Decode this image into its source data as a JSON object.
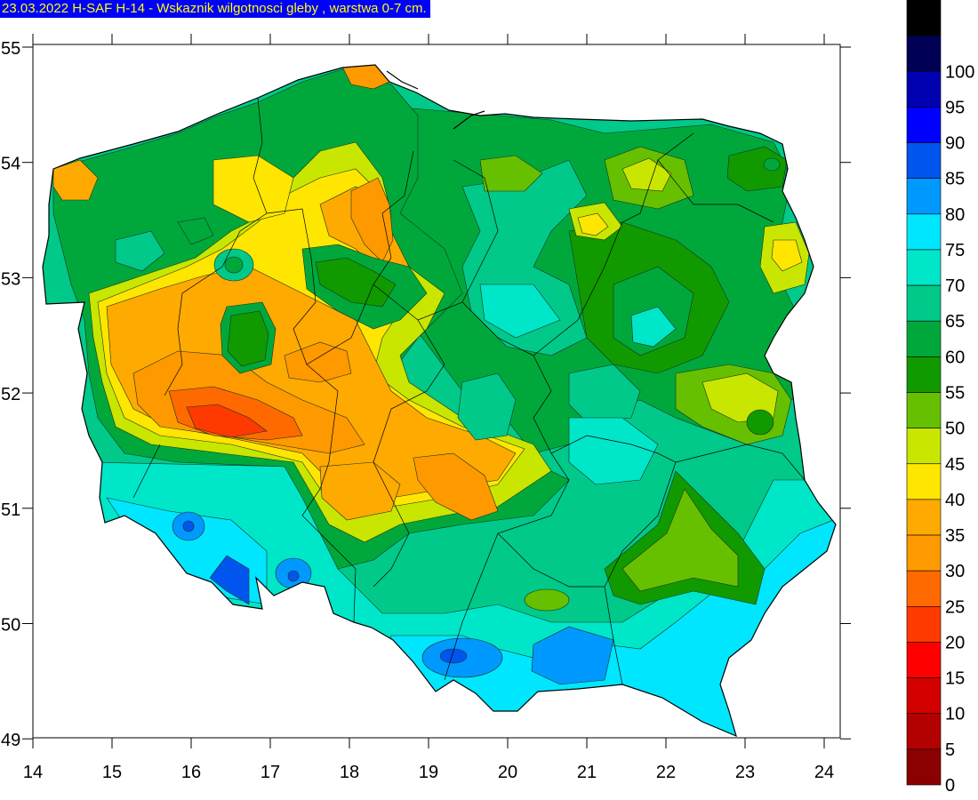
{
  "title": "23.03.2022 H-SAF H-14 - Wskaznik wilgotnosci gleby , warstwa 0-7 cm.",
  "map": {
    "lon_range": [
      14,
      24.3
    ],
    "lat_range": [
      49,
      55
    ],
    "lon_ticks": [
      "14",
      "15",
      "16",
      "17",
      "18",
      "19",
      "20",
      "21",
      "22",
      "23",
      "24"
    ],
    "lat_ticks": [
      "55",
      "54",
      "53",
      "52",
      "51",
      "50",
      "49"
    ]
  },
  "legend": {
    "levels": [
      {
        "value": "0",
        "color": "#8b0000"
      },
      {
        "value": "5",
        "color": "#b30000"
      },
      {
        "value": "10",
        "color": "#d40000"
      },
      {
        "value": "15",
        "color": "#ff0000"
      },
      {
        "value": "20",
        "color": "#ff3a00"
      },
      {
        "value": "25",
        "color": "#ff6a00"
      },
      {
        "value": "30",
        "color": "#ff9900"
      },
      {
        "value": "35",
        "color": "#ffaa00"
      },
      {
        "value": "40",
        "color": "#ffe600"
      },
      {
        "value": "45",
        "color": "#c8e600"
      },
      {
        "value": "50",
        "color": "#66c000"
      },
      {
        "value": "55",
        "color": "#109a00"
      },
      {
        "value": "60",
        "color": "#00a83c"
      },
      {
        "value": "65",
        "color": "#00c98a"
      },
      {
        "value": "70",
        "color": "#00e6c8"
      },
      {
        "value": "75",
        "color": "#00e6ff"
      },
      {
        "value": "80",
        "color": "#0099ff"
      },
      {
        "value": "85",
        "color": "#0055ee"
      },
      {
        "value": "90",
        "color": "#0000ff"
      },
      {
        "value": "95",
        "color": "#0000b0"
      },
      {
        "value": "100",
        "color": "#000055"
      },
      {
        "value": "",
        "color": "#000000"
      }
    ]
  }
}
